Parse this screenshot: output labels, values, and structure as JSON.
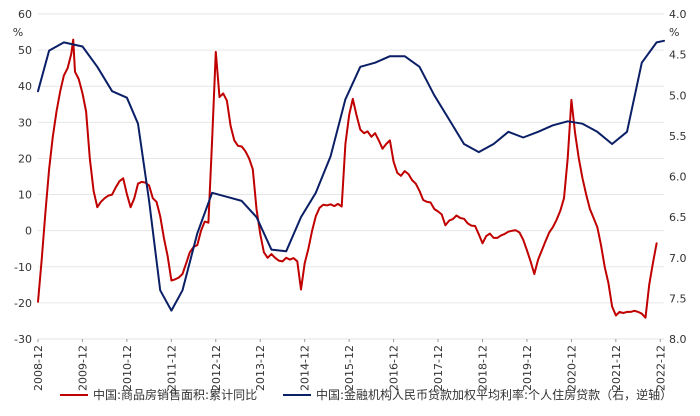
{
  "chart_data": {
    "type": "line",
    "left_axis": {
      "unit": "%",
      "ylim": [
        -30,
        60
      ],
      "ticks": [
        60,
        50,
        40,
        30,
        20,
        10,
        0,
        -10,
        -20,
        -30
      ]
    },
    "right_axis": {
      "unit": "%",
      "ylim": [
        4.0,
        8.0
      ],
      "inverted": true,
      "ticks": [
        "4.0",
        "4.5",
        "5.0",
        "5.5",
        "6.0",
        "6.5",
        "7.0",
        "7.5",
        "8.0"
      ]
    },
    "x_labels": [
      "2008-12",
      "2009-12",
      "2010-12",
      "2011-12",
      "2012-12",
      "2013-12",
      "2014-12",
      "2015-12",
      "2016-12",
      "2017-12",
      "2018-12",
      "2019-12",
      "2020-12",
      "2021-12",
      "2022-12"
    ],
    "x_range": [
      2008.917,
      2023.0
    ],
    "series": [
      {
        "name": "中国:商品房销售面积:累计同比",
        "axis": "left",
        "color": "#c00000",
        "points": [
          [
            2008.917,
            -19.7
          ],
          [
            2009.0,
            -8
          ],
          [
            2009.083,
            5
          ],
          [
            2009.167,
            17
          ],
          [
            2009.25,
            26
          ],
          [
            2009.333,
            33
          ],
          [
            2009.417,
            38.6
          ],
          [
            2009.5,
            43
          ],
          [
            2009.583,
            45
          ],
          [
            2009.667,
            49
          ],
          [
            2009.708,
            52.9
          ],
          [
            2009.75,
            44
          ],
          [
            2009.833,
            42
          ],
          [
            2009.917,
            38
          ],
          [
            2010.0,
            33
          ],
          [
            2010.083,
            20
          ],
          [
            2010.167,
            11
          ],
          [
            2010.25,
            6.5
          ],
          [
            2010.333,
            8
          ],
          [
            2010.417,
            9
          ],
          [
            2010.5,
            9.7
          ],
          [
            2010.583,
            10
          ],
          [
            2010.667,
            12
          ],
          [
            2010.75,
            13.7
          ],
          [
            2010.833,
            14.5
          ],
          [
            2010.917,
            10.1
          ],
          [
            2011.0,
            6.5
          ],
          [
            2011.083,
            9
          ],
          [
            2011.167,
            13
          ],
          [
            2011.25,
            13.5
          ],
          [
            2011.333,
            13.3
          ],
          [
            2011.417,
            12.5
          ],
          [
            2011.5,
            9
          ],
          [
            2011.583,
            8
          ],
          [
            2011.667,
            4
          ],
          [
            2011.75,
            -2
          ],
          [
            2011.833,
            -7
          ],
          [
            2011.917,
            -13.8
          ],
          [
            2012.0,
            -13.5
          ],
          [
            2012.083,
            -13
          ],
          [
            2012.167,
            -12
          ],
          [
            2012.25,
            -9
          ],
          [
            2012.333,
            -6
          ],
          [
            2012.417,
            -4.5
          ],
          [
            2012.5,
            -4
          ],
          [
            2012.583,
            0
          ],
          [
            2012.667,
            2.5
          ],
          [
            2012.75,
            2.2
          ],
          [
            2012.833,
            25
          ],
          [
            2012.917,
            49.5
          ],
          [
            2013.0,
            37
          ],
          [
            2013.083,
            38
          ],
          [
            2013.167,
            36
          ],
          [
            2013.25,
            29
          ],
          [
            2013.333,
            25
          ],
          [
            2013.417,
            23.5
          ],
          [
            2013.5,
            23.3
          ],
          [
            2013.583,
            22
          ],
          [
            2013.667,
            20
          ],
          [
            2013.75,
            17
          ],
          [
            2013.833,
            6
          ],
          [
            2013.917,
            -1
          ],
          [
            2014.0,
            -6
          ],
          [
            2014.083,
            -7.5
          ],
          [
            2014.167,
            -6.5
          ],
          [
            2014.25,
            -7.5
          ],
          [
            2014.333,
            -8.3
          ],
          [
            2014.417,
            -8.5
          ],
          [
            2014.5,
            -7.5
          ],
          [
            2014.583,
            -8
          ],
          [
            2014.667,
            -7.6
          ],
          [
            2014.75,
            -8.5
          ],
          [
            2014.833,
            -16.3
          ],
          [
            2014.917,
            -9
          ],
          [
            2015.0,
            -5
          ],
          [
            2015.083,
            0
          ],
          [
            2015.167,
            4
          ],
          [
            2015.25,
            6.3
          ],
          [
            2015.333,
            7.2
          ],
          [
            2015.417,
            7
          ],
          [
            2015.5,
            7.3
          ],
          [
            2015.583,
            6.8
          ],
          [
            2015.667,
            7.4
          ],
          [
            2015.75,
            6.7
          ],
          [
            2015.833,
            24
          ],
          [
            2015.917,
            32.1
          ],
          [
            2016.0,
            36.5
          ],
          [
            2016.083,
            32
          ],
          [
            2016.167,
            28
          ],
          [
            2016.25,
            27
          ],
          [
            2016.333,
            27.5
          ],
          [
            2016.417,
            26
          ],
          [
            2016.5,
            27
          ],
          [
            2016.583,
            25
          ],
          [
            2016.667,
            22.7
          ],
          [
            2016.75,
            24
          ],
          [
            2016.833,
            25
          ],
          [
            2016.917,
            19.1
          ],
          [
            2017.0,
            16
          ],
          [
            2017.083,
            15.2
          ],
          [
            2017.167,
            16.5
          ],
          [
            2017.25,
            15.7
          ],
          [
            2017.333,
            14
          ],
          [
            2017.417,
            13
          ],
          [
            2017.5,
            11
          ],
          [
            2017.583,
            8.5
          ],
          [
            2017.667,
            8
          ],
          [
            2017.75,
            7.8
          ],
          [
            2017.833,
            6
          ],
          [
            2017.917,
            5.3
          ],
          [
            2018.0,
            4.5
          ],
          [
            2018.083,
            1.5
          ],
          [
            2018.167,
            2.8
          ],
          [
            2018.25,
            3.2
          ],
          [
            2018.333,
            4.2
          ],
          [
            2018.417,
            3.5
          ],
          [
            2018.5,
            3.3
          ],
          [
            2018.583,
            2
          ],
          [
            2018.667,
            1.4
          ],
          [
            2018.75,
            1.3
          ],
          [
            2018.833,
            -1
          ],
          [
            2018.917,
            -3.5
          ],
          [
            2019.0,
            -1.5
          ],
          [
            2019.083,
            -0.8
          ],
          [
            2019.167,
            -2
          ],
          [
            2019.25,
            -2
          ],
          [
            2019.333,
            -1.3
          ],
          [
            2019.417,
            -0.9
          ],
          [
            2019.5,
            -0.3
          ],
          [
            2019.583,
            0
          ],
          [
            2019.667,
            0.1
          ],
          [
            2019.75,
            -0.5
          ],
          [
            2019.833,
            -2.5
          ],
          [
            2019.917,
            -5.5
          ],
          [
            2020.0,
            -8.5
          ],
          [
            2020.083,
            -12
          ],
          [
            2020.167,
            -8
          ],
          [
            2020.25,
            -5.5
          ],
          [
            2020.333,
            -3
          ],
          [
            2020.417,
            -0.5
          ],
          [
            2020.5,
            1
          ],
          [
            2020.583,
            3
          ],
          [
            2020.667,
            5.5
          ],
          [
            2020.75,
            9
          ],
          [
            2020.833,
            20
          ],
          [
            2020.917,
            36.2
          ],
          [
            2021.0,
            27
          ],
          [
            2021.083,
            20
          ],
          [
            2021.167,
            14.5
          ],
          [
            2021.25,
            10
          ],
          [
            2021.333,
            6
          ],
          [
            2021.417,
            3.5
          ],
          [
            2021.5,
            1
          ],
          [
            2021.583,
            -4
          ],
          [
            2021.667,
            -10
          ],
          [
            2021.75,
            -14.5
          ],
          [
            2021.833,
            -21
          ],
          [
            2021.917,
            -23.5
          ],
          [
            2022.0,
            -22.5
          ],
          [
            2022.083,
            -22.8
          ],
          [
            2022.167,
            -22.5
          ],
          [
            2022.25,
            -22.5
          ],
          [
            2022.333,
            -22.2
          ],
          [
            2022.417,
            -22.5
          ],
          [
            2022.5,
            -23
          ],
          [
            2022.583,
            -24.1
          ],
          [
            2022.667,
            -15
          ],
          [
            2022.75,
            -9
          ],
          [
            2022.833,
            -3.5
          ]
        ]
      },
      {
        "name": "中国:金融机构人民币贷款加权平均利率:个人住房贷款（右，逆轴）",
        "axis": "right",
        "color": "#0b1f66",
        "points": [
          [
            2008.917,
            4.95
          ],
          [
            2009.167,
            4.45
          ],
          [
            2009.5,
            4.35
          ],
          [
            2009.917,
            4.4
          ],
          [
            2010.25,
            4.65
          ],
          [
            2010.583,
            4.95
          ],
          [
            2010.917,
            5.03
          ],
          [
            2011.167,
            5.35
          ],
          [
            2011.417,
            6.3
          ],
          [
            2011.667,
            7.4
          ],
          [
            2011.917,
            7.65
          ],
          [
            2012.167,
            7.4
          ],
          [
            2012.5,
            6.7
          ],
          [
            2012.833,
            6.2
          ],
          [
            2013.167,
            6.25
          ],
          [
            2013.5,
            6.3
          ],
          [
            2013.833,
            6.5
          ],
          [
            2014.167,
            6.9
          ],
          [
            2014.5,
            6.92
          ],
          [
            2014.833,
            6.5
          ],
          [
            2015.167,
            6.2
          ],
          [
            2015.5,
            5.75
          ],
          [
            2015.833,
            5.05
          ],
          [
            2016.167,
            4.65
          ],
          [
            2016.5,
            4.6
          ],
          [
            2016.833,
            4.52
          ],
          [
            2017.167,
            4.52
          ],
          [
            2017.5,
            4.65
          ],
          [
            2017.833,
            5.0
          ],
          [
            2018.167,
            5.3
          ],
          [
            2018.5,
            5.6
          ],
          [
            2018.833,
            5.7
          ],
          [
            2019.167,
            5.6
          ],
          [
            2019.5,
            5.45
          ],
          [
            2019.833,
            5.52
          ],
          [
            2020.167,
            5.45
          ],
          [
            2020.5,
            5.37
          ],
          [
            2020.833,
            5.32
          ],
          [
            2021.167,
            5.35
          ],
          [
            2021.5,
            5.45
          ],
          [
            2021.833,
            5.6
          ],
          [
            2022.167,
            5.45
          ],
          [
            2022.5,
            4.6
          ],
          [
            2022.833,
            4.35
          ],
          [
            2023.0,
            4.33
          ]
        ]
      }
    ]
  }
}
